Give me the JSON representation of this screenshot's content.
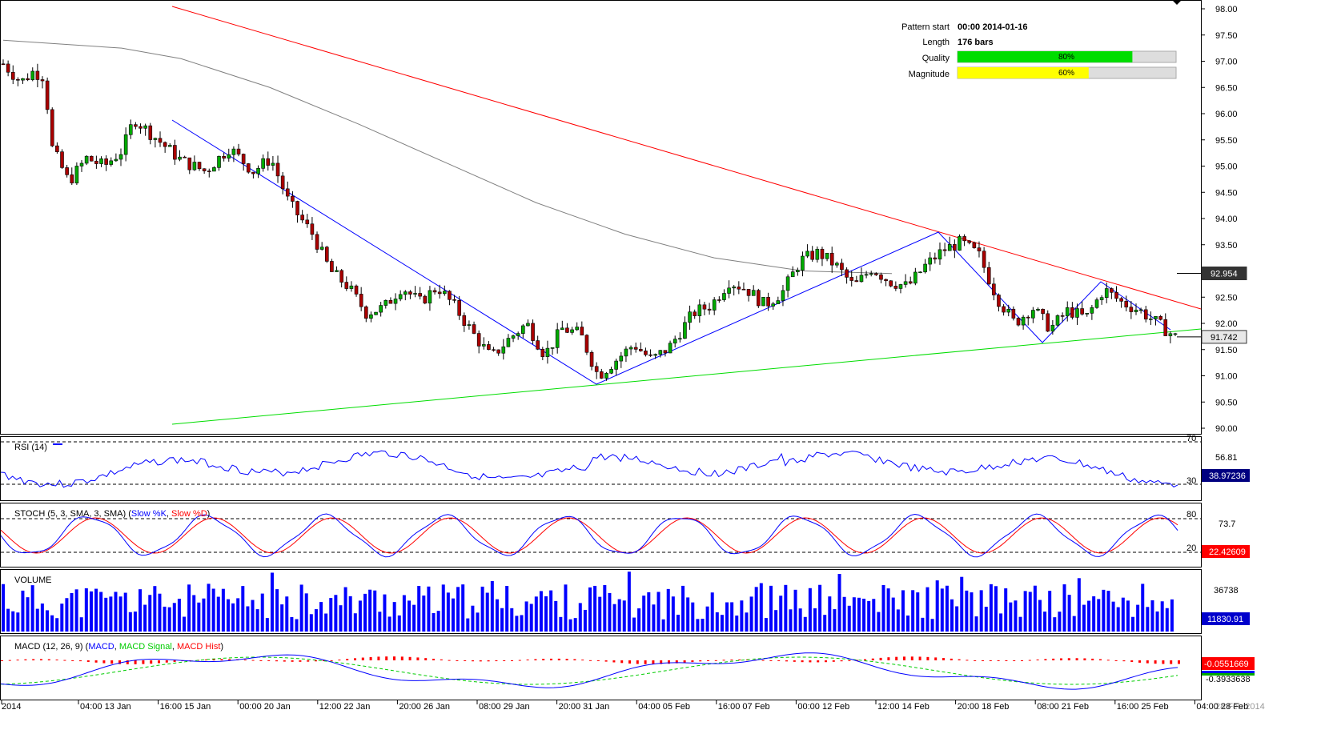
{
  "info": {
    "pattern_start_label": "Pattern start",
    "pattern_start_value": "00:00 2014-01-16",
    "length_label": "Length",
    "length_value": "176 bars",
    "quality_label": "Quality",
    "quality_value": "80%",
    "quality_fraction": 0.8,
    "magnitude_label": "Magnitude",
    "magnitude_value": "60%",
    "magnitude_fraction": 0.6
  },
  "colors": {
    "up_candle": "#00aa00",
    "down_candle": "#aa0000",
    "resistance": "#ff0000",
    "support": "#00dd00",
    "zigzag": "#0000ff",
    "moving_average": "#808080",
    "quality_bar": "#00dd00",
    "magnitude_bar": "#ffff00",
    "volume": "#0000ff",
    "indicator_blue": "#0000ff",
    "indicator_red": "#ff0000",
    "macd_signal": "#00cc00"
  },
  "chart_data": {
    "type": "candlestick",
    "price_axis": {
      "ticks": [
        "98.00",
        "97.50",
        "97.00",
        "96.50",
        "96.00",
        "95.50",
        "95.00",
        "94.50",
        "94.00",
        "93.50",
        "93.00",
        "92.50",
        "92.00",
        "91.50",
        "91.00",
        "90.50",
        "90.00"
      ],
      "range": [
        90.0,
        98.0
      ]
    },
    "price_badges": [
      {
        "label": "92.954",
        "value": 92.954
      },
      {
        "label": "91.742",
        "value": 91.742
      }
    ],
    "x_labels": [
      "2014",
      "04:00 13 Jan",
      "16:00 15 Jan",
      "00:00 20 Jan",
      "12:00 22 Jan",
      "20:00 26 Jan",
      "08:00 29 Jan",
      "20:00 31 Jan",
      "04:00 05 Feb",
      "16:00 07 Feb",
      "00:00 12 Feb",
      "12:00 14 Feb",
      "20:00 18 Feb",
      "08:00 21 Feb",
      "16:00 25 Feb",
      "04:00 28 Feb"
    ],
    "x_end_overlap_label": "28 Feb 2014",
    "pattern": {
      "resistance": [
        [
          -0.4,
          98.0
        ],
        [
          1.5,
          92.3
        ]
      ],
      "support": [
        [
          -0.4,
          90.05
        ],
        [
          1.5,
          91.87
        ]
      ],
      "zigzag": [
        [
          -0.35,
          95.9
        ],
        [
          0.275,
          91.65
        ],
        [
          0.74,
          93.75
        ],
        [
          1.1,
          91.68
        ],
        [
          1.25,
          92.82
        ],
        [
          1.5,
          91.88
        ]
      ]
    },
    "ohlc_close_path": [
      [
        0.0,
        96.95
      ],
      [
        0.03,
        96.6
      ],
      [
        0.05,
        96.8
      ],
      [
        0.07,
        96.7
      ],
      [
        0.08,
        95.4
      ],
      [
        0.11,
        94.7
      ],
      [
        0.14,
        95.15
      ],
      [
        0.17,
        95.0
      ],
      [
        0.2,
        95.3
      ],
      [
        0.22,
        95.9
      ],
      [
        0.26,
        95.5
      ],
      [
        0.3,
        95.1
      ],
      [
        0.34,
        94.9
      ],
      [
        0.38,
        95.35
      ],
      [
        0.42,
        94.9
      ],
      [
        0.45,
        95.15
      ],
      [
        0.48,
        94.3
      ],
      [
        0.52,
        93.7
      ],
      [
        0.55,
        93.0
      ],
      [
        0.58,
        92.7
      ],
      [
        0.61,
        92.2
      ],
      [
        0.64,
        92.3
      ],
      [
        0.67,
        92.7
      ],
      [
        0.7,
        92.4
      ],
      [
        0.73,
        92.7
      ],
      [
        0.76,
        92.3
      ],
      [
        0.79,
        91.8
      ],
      [
        0.82,
        91.35
      ],
      [
        0.85,
        91.7
      ],
      [
        0.88,
        92.0
      ],
      [
        0.91,
        91.4
      ],
      [
        0.94,
        91.9
      ],
      [
        0.97,
        91.8
      ],
      [
        1.0,
        91.0
      ],
      [
        1.03,
        91.3
      ],
      [
        1.06,
        91.6
      ],
      [
        1.09,
        91.3
      ],
      [
        1.12,
        91.55
      ],
      [
        1.16,
        92.2
      ],
      [
        1.19,
        92.35
      ],
      [
        1.22,
        92.8
      ],
      [
        1.25,
        92.65
      ],
      [
        1.28,
        92.35
      ],
      [
        1.31,
        92.6
      ],
      [
        1.34,
        93.2
      ],
      [
        1.37,
        93.35
      ],
      [
        1.4,
        93.1
      ],
      [
        1.43,
        92.7
      ],
      [
        1.46,
        93.05
      ],
      [
        1.49,
        92.8
      ],
      [
        1.52,
        92.7
      ],
      [
        1.55,
        93.1
      ],
      [
        1.58,
        93.4
      ],
      [
        1.61,
        93.55
      ],
      [
        1.64,
        93.3
      ],
      [
        1.67,
        92.5
      ],
      [
        1.7,
        92.0
      ],
      [
        1.73,
        92.3
      ],
      [
        1.76,
        91.9
      ],
      [
        1.79,
        92.25
      ],
      [
        1.82,
        92.1
      ],
      [
        1.85,
        92.65
      ],
      [
        1.88,
        92.4
      ],
      [
        1.91,
        92.25
      ],
      [
        1.94,
        92.0
      ],
      [
        1.97,
        91.74
      ]
    ],
    "ma_path": [
      [
        0.0,
        97.4
      ],
      [
        0.2,
        97.25
      ],
      [
        0.3,
        97.05
      ],
      [
        0.45,
        96.5
      ],
      [
        0.6,
        95.8
      ],
      [
        0.75,
        95.05
      ],
      [
        0.9,
        94.3
      ],
      [
        1.05,
        93.7
      ],
      [
        1.2,
        93.25
      ],
      [
        1.35,
        93.0
      ],
      [
        1.5,
        92.95
      ]
    ],
    "rsi": {
      "title": "RSI (14)",
      "levels_labels": [
        "70",
        "30"
      ],
      "axis_tick": "56.81",
      "badge": "38.97236",
      "range": [
        20,
        80
      ],
      "levels": [
        70,
        30
      ]
    },
    "stoch": {
      "title_prefix": "STOCH (5, 3, SMA, 3, SMA) (",
      "k_name": "Slow %K",
      "d_name": "Slow %D",
      "title_suffix": ")",
      "levels_labels": [
        "80",
        "20"
      ],
      "axis_tick": "73.7",
      "badge": "22.42609",
      "levels": [
        80,
        20
      ]
    },
    "volume": {
      "title": "VOLUME",
      "axis_tick": "36738",
      "badge": "11830.91",
      "max": 48000
    },
    "macd": {
      "title_prefix": "MACD (12, 26, 9) (",
      "macd_name": "MACD",
      "signal_name": "MACD Signal",
      "hist_name": "MACD Hist",
      "title_suffix": ")",
      "axis_tick": "-0.3933638",
      "badge": "-0.0551669"
    }
  }
}
